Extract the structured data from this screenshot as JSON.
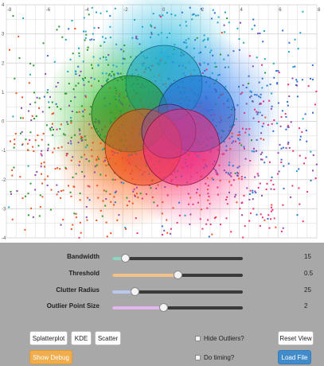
{
  "plot": {
    "x_ticks": [
      "-8",
      "-6",
      "-4",
      "-2",
      "0",
      "2",
      "4",
      "6",
      "8"
    ],
    "y_ticks": [
      "4",
      "3",
      "2",
      "1",
      "0",
      "-1",
      "-2",
      "-3",
      "-4"
    ],
    "circles": [
      {
        "name": "cyan",
        "color": "#1fa6c9"
      },
      {
        "name": "green",
        "color": "#1e9a2a"
      },
      {
        "name": "blue",
        "color": "#1f6fd6"
      },
      {
        "name": "orange",
        "color": "#f0521e"
      },
      {
        "name": "purple",
        "color": "#7e4aa8"
      },
      {
        "name": "pink",
        "color": "#ee2f7a"
      }
    ]
  },
  "sliders": [
    {
      "label": "Bandwidth",
      "value": "15",
      "fraction": 0.1,
      "color": "#8fd4c1"
    },
    {
      "label": "Threshold",
      "value": "0.5",
      "fraction": 0.5,
      "color": "#f3c08a"
    },
    {
      "label": "Clutter Radius",
      "value": "25",
      "fraction": 0.17,
      "color": "#b9c9ee"
    },
    {
      "label": "Outlier Point Size",
      "value": "2",
      "fraction": 0.39,
      "color": "#e4b6ef"
    }
  ],
  "buttons": {
    "splatterplot": "Splatterplot",
    "kde": "KDE",
    "scatter": "Scatter",
    "reset_view": "Reset View",
    "show_debug": "Show Debug",
    "load_file": "Load File"
  },
  "checkboxes": {
    "hide_outliers": "Hide Outliers?",
    "do_timing": "Do timing?"
  }
}
